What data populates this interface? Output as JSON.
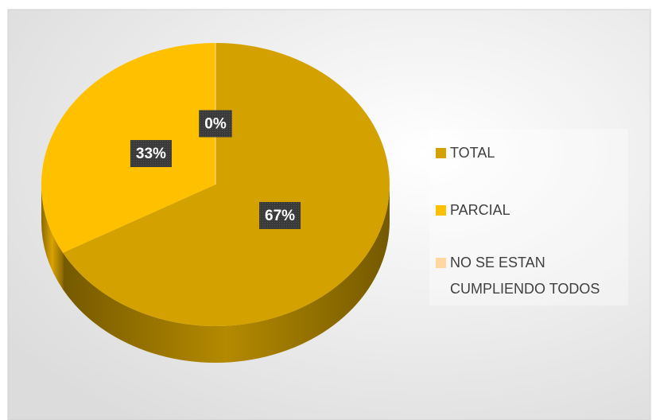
{
  "chart_data": {
    "type": "pie",
    "categories": [
      "TOTAL",
      "PARCIAL",
      "NO SE ESTAN CUMPLIENDO TODOS"
    ],
    "values": [
      67,
      33,
      0
    ],
    "value_labels": [
      "67%",
      "33%",
      "0%"
    ],
    "colors": [
      "#d4a200",
      "#ffc000",
      "#ffd8a0"
    ],
    "legend": "right"
  }
}
